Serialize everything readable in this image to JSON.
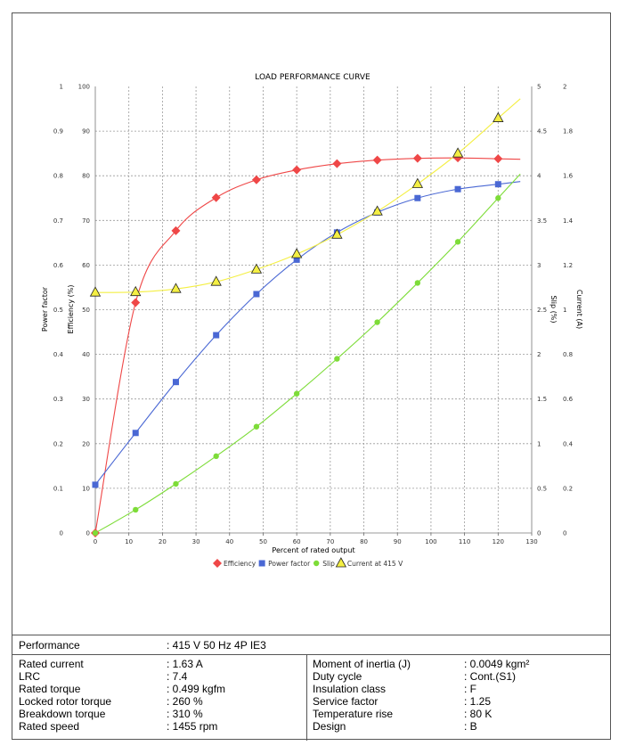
{
  "chart_data": {
    "type": "line",
    "title": "LOAD PERFORMANCE CURVE",
    "xlabel": "Percent of rated output",
    "xlim": [
      0,
      130
    ],
    "x_ticks": [
      "0",
      "10",
      "20",
      "30",
      "40",
      "50",
      "60",
      "70",
      "80",
      "90",
      "100",
      "110",
      "120",
      "130"
    ],
    "grid": true,
    "legend_position": "bottom",
    "axes": {
      "power_factor": {
        "label": "Power factor",
        "range": [
          0,
          1
        ],
        "ticks": [
          "0",
          "0.1",
          "0.2",
          "0.3",
          "0.4",
          "0.5",
          "0.6",
          "0.7",
          "0.8",
          "0.9",
          "1"
        ]
      },
      "efficiency": {
        "label": "Efficiency (%)",
        "range": [
          0,
          100
        ],
        "ticks": [
          "0",
          "10",
          "20",
          "30",
          "40",
          "50",
          "60",
          "70",
          "80",
          "90",
          "100"
        ]
      },
      "slip": {
        "label": "Slip (%)",
        "range": [
          0,
          5
        ],
        "ticks": [
          "0",
          "0.5",
          "1",
          "1.5",
          "2",
          "2.5",
          "3",
          "3.5",
          "4",
          "4.5",
          "5"
        ]
      },
      "current": {
        "label": "Current (A)",
        "range": [
          0,
          2
        ],
        "ticks": [
          "0",
          "0.2",
          "0.4",
          "0.6",
          "0.8",
          "1",
          "1.2",
          "1.4",
          "1.6",
          "1.8",
          "2"
        ]
      }
    },
    "series": [
      {
        "name": "Efficiency",
        "axis": "efficiency",
        "color": "#ef4747",
        "marker": "diamond",
        "x": [
          0,
          12,
          24,
          36,
          48,
          60,
          72,
          84,
          96,
          108,
          120
        ],
        "values": [
          0,
          51.6,
          67.7,
          75.1,
          79.1,
          81.3,
          82.7,
          83.5,
          83.9,
          84.0,
          83.8
        ]
      },
      {
        "name": "Power factor",
        "axis": "power_factor",
        "color": "#4a68d4",
        "marker": "square",
        "x": [
          0,
          12,
          24,
          36,
          48,
          60,
          72,
          84,
          96,
          108,
          120
        ],
        "values": [
          0.108,
          0.224,
          0.338,
          0.443,
          0.535,
          0.612,
          0.673,
          0.718,
          0.75,
          0.77,
          0.781
        ]
      },
      {
        "name": "Slip",
        "axis": "slip",
        "color": "#7ddc38",
        "marker": "circle",
        "x": [
          0,
          12,
          24,
          36,
          48,
          60,
          72,
          84,
          96,
          108,
          120
        ],
        "values": [
          0.0,
          0.26,
          0.55,
          0.86,
          1.19,
          1.56,
          1.95,
          2.36,
          2.8,
          3.26,
          3.75
        ]
      },
      {
        "name": "Current at 415 V",
        "axis": "current",
        "color": "#f4ef43",
        "marker": "triangle",
        "x": [
          0,
          12,
          24,
          36,
          48,
          60,
          72,
          84,
          96,
          108,
          120
        ],
        "values": [
          1.077,
          1.079,
          1.093,
          1.125,
          1.18,
          1.249,
          1.336,
          1.44,
          1.563,
          1.7,
          1.858
        ]
      }
    ]
  },
  "specs": {
    "performance_label": "Performance",
    "performance_value": ": 415 V 50 Hz 4P IE3",
    "left": [
      {
        "label": "Rated current",
        "value": ": 1.63 A"
      },
      {
        "label": "LRC",
        "value": ": 7.4"
      },
      {
        "label": "Rated torque",
        "value": ": 0.499 kgfm"
      },
      {
        "label": "Locked rotor torque",
        "value": ": 260 %"
      },
      {
        "label": "Breakdown torque",
        "value": ": 310 %"
      },
      {
        "label": "Rated speed",
        "value": ": 1455 rpm"
      }
    ],
    "right": [
      {
        "label": "Moment of inertia (J)",
        "value": ": 0.0049 kgm²"
      },
      {
        "label": "Duty cycle",
        "value": ": Cont.(S1)"
      },
      {
        "label": "Insulation class",
        "value": ": F"
      },
      {
        "label": "Service factor",
        "value": ": 1.25"
      },
      {
        "label": "Temperature rise",
        "value": ": 80 K"
      },
      {
        "label": "Design",
        "value": ": B"
      }
    ]
  }
}
